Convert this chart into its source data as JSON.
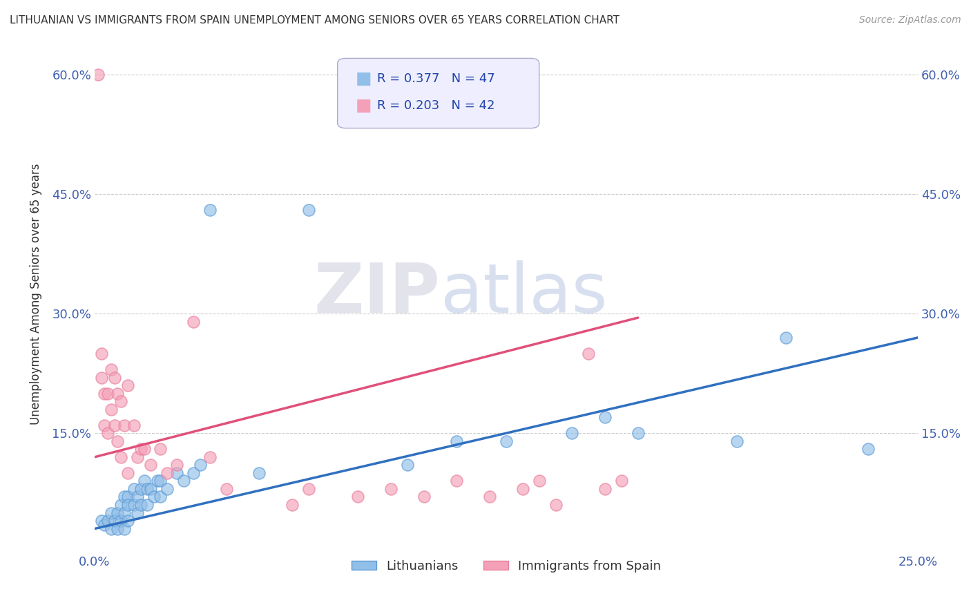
{
  "title": "LITHUANIAN VS IMMIGRANTS FROM SPAIN UNEMPLOYMENT AMONG SENIORS OVER 65 YEARS CORRELATION CHART",
  "source": "Source: ZipAtlas.com",
  "ylabel": "Unemployment Among Seniors over 65 years",
  "xlim": [
    0.0,
    0.25
  ],
  "ylim": [
    0.0,
    0.65
  ],
  "xticks": [
    0.0,
    0.05,
    0.1,
    0.15,
    0.2,
    0.25
  ],
  "xtick_labels": [
    "0.0%",
    "",
    "",
    "",
    "",
    "25.0%"
  ],
  "yticks": [
    0.0,
    0.15,
    0.3,
    0.45,
    0.6
  ],
  "ytick_labels": [
    "",
    "15.0%",
    "30.0%",
    "45.0%",
    "60.0%"
  ],
  "legend1_r": "0.377",
  "legend1_n": "47",
  "legend2_r": "0.203",
  "legend2_n": "42",
  "blue_color": "#92bfe8",
  "pink_color": "#f4a0b8",
  "blue_edge_color": "#5b9bd5",
  "pink_edge_color": "#e87fa0",
  "blue_line_color": "#3070c0",
  "pink_line_color": "#e0507a",
  "watermark_zip": "ZIP",
  "watermark_atlas": "atlas",
  "blue_scatter_x": [
    0.002,
    0.003,
    0.004,
    0.005,
    0.005,
    0.006,
    0.007,
    0.007,
    0.008,
    0.008,
    0.009,
    0.009,
    0.009,
    0.01,
    0.01,
    0.01,
    0.012,
    0.012,
    0.013,
    0.013,
    0.014,
    0.014,
    0.015,
    0.016,
    0.016,
    0.017,
    0.018,
    0.019,
    0.02,
    0.02,
    0.022,
    0.025,
    0.027,
    0.03,
    0.032,
    0.035,
    0.05,
    0.065,
    0.095,
    0.11,
    0.125,
    0.145,
    0.155,
    0.165,
    0.195,
    0.21,
    0.235
  ],
  "blue_scatter_y": [
    0.04,
    0.035,
    0.04,
    0.05,
    0.03,
    0.04,
    0.05,
    0.03,
    0.06,
    0.04,
    0.07,
    0.05,
    0.03,
    0.07,
    0.06,
    0.04,
    0.08,
    0.06,
    0.07,
    0.05,
    0.08,
    0.06,
    0.09,
    0.08,
    0.06,
    0.08,
    0.07,
    0.09,
    0.09,
    0.07,
    0.08,
    0.1,
    0.09,
    0.1,
    0.11,
    0.43,
    0.1,
    0.43,
    0.11,
    0.14,
    0.14,
    0.15,
    0.17,
    0.15,
    0.14,
    0.27,
    0.13
  ],
  "pink_scatter_x": [
    0.001,
    0.002,
    0.002,
    0.003,
    0.003,
    0.004,
    0.004,
    0.005,
    0.005,
    0.006,
    0.006,
    0.007,
    0.007,
    0.008,
    0.008,
    0.009,
    0.01,
    0.01,
    0.012,
    0.013,
    0.014,
    0.015,
    0.017,
    0.02,
    0.022,
    0.025,
    0.03,
    0.035,
    0.04,
    0.06,
    0.065,
    0.08,
    0.09,
    0.1,
    0.11,
    0.12,
    0.13,
    0.135,
    0.14,
    0.15,
    0.155,
    0.16
  ],
  "pink_scatter_y": [
    0.6,
    0.25,
    0.22,
    0.2,
    0.16,
    0.15,
    0.2,
    0.23,
    0.18,
    0.22,
    0.16,
    0.2,
    0.14,
    0.19,
    0.12,
    0.16,
    0.21,
    0.1,
    0.16,
    0.12,
    0.13,
    0.13,
    0.11,
    0.13,
    0.1,
    0.11,
    0.29,
    0.12,
    0.08,
    0.06,
    0.08,
    0.07,
    0.08,
    0.07,
    0.09,
    0.07,
    0.08,
    0.09,
    0.06,
    0.25,
    0.08,
    0.09
  ],
  "blue_trend_x": [
    0.0,
    0.25
  ],
  "blue_trend_y": [
    0.03,
    0.27
  ],
  "pink_trend_x": [
    0.0,
    0.165
  ],
  "pink_trend_y": [
    0.12,
    0.295
  ],
  "background_color": "#ffffff",
  "grid_color": "#cccccc",
  "title_color": "#333333",
  "axis_label_color": "#4060b0",
  "legend_box_color": "#eeeeff",
  "legend_text_color": "#2244aa"
}
